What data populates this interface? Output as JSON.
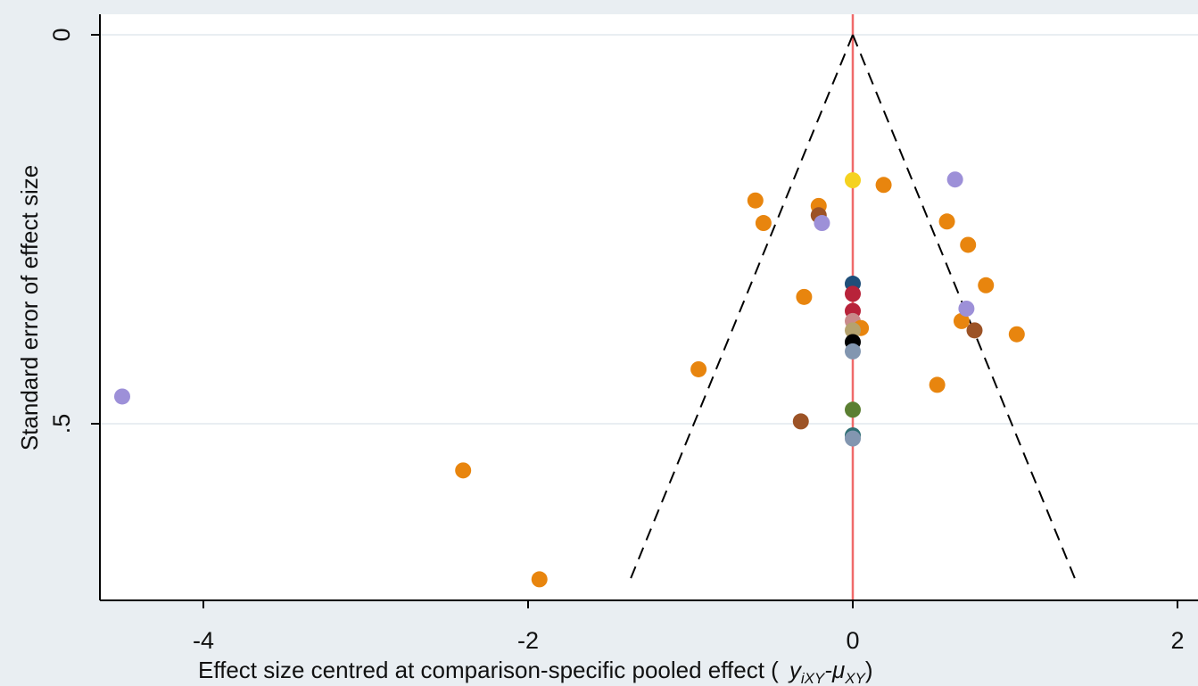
{
  "chart_data": {
    "type": "scatter",
    "title": "",
    "xlabel": "Effect size centred at comparison-specific pooled effect (",
    "xlabel_math": "y",
    "xlabel_math_sub1": "iXY",
    "xlabel_math_mu": "-μ",
    "xlabel_math_sub2": "XY",
    "xlabel_close": ")",
    "ylabel": "Standard error of effect size",
    "xlim": [
      -4.6,
      2.05
    ],
    "ylim": [
      0,
      0.725
    ],
    "y_reversed": true,
    "x_ticks": [
      {
        "value": -4,
        "label": "-4"
      },
      {
        "value": -2,
        "label": "-2"
      },
      {
        "value": 0,
        "label": "0"
      },
      {
        "value": 2,
        "label": "2"
      }
    ],
    "y_ticks": [
      {
        "value": 0,
        "label": "0"
      },
      {
        "value": 0.5,
        "label": ".5"
      }
    ],
    "grid": "horizontal",
    "reference_line": {
      "x": 0,
      "color": "#f06a6a"
    },
    "funnel": {
      "apex": [
        0,
        0
      ],
      "left_end": [
        -1.37,
        0.7
      ],
      "right_end": [
        1.37,
        0.7
      ]
    },
    "colors": {
      "orange": "#e8850e",
      "lavender": "#9d90d8",
      "brown": "#9c5326",
      "navy": "#1f4e79",
      "crimson": "#b8233a",
      "rose": "#c98a8a",
      "tan": "#b5a26e",
      "black": "#000000",
      "steel": "#8296b0",
      "olive": "#5b7f32",
      "teal": "#2f6f74",
      "yellow": "#f5d21f",
      "grid": "#ffffff",
      "background": "#e9eef2"
    },
    "points": [
      {
        "x": -4.5,
        "y": 0.465,
        "color": "lavender"
      },
      {
        "x": -2.4,
        "y": 0.56,
        "color": "orange"
      },
      {
        "x": -1.93,
        "y": 0.7,
        "color": "orange"
      },
      {
        "x": -0.95,
        "y": 0.43,
        "color": "orange"
      },
      {
        "x": -0.6,
        "y": 0.213,
        "color": "orange"
      },
      {
        "x": -0.55,
        "y": 0.242,
        "color": "orange"
      },
      {
        "x": -0.3,
        "y": 0.337,
        "color": "orange"
      },
      {
        "x": -0.32,
        "y": 0.497,
        "color": "brown"
      },
      {
        "x": -0.21,
        "y": 0.22,
        "color": "orange"
      },
      {
        "x": -0.21,
        "y": 0.232,
        "color": "brown"
      },
      {
        "x": -0.19,
        "y": 0.242,
        "color": "lavender"
      },
      {
        "x": 0.0,
        "y": 0.32,
        "color": "navy"
      },
      {
        "x": 0.0,
        "y": 0.333,
        "color": "crimson"
      },
      {
        "x": 0.0,
        "y": 0.355,
        "color": "crimson"
      },
      {
        "x": 0.0,
        "y": 0.368,
        "color": "rose"
      },
      {
        "x": 0.05,
        "y": 0.377,
        "color": "orange"
      },
      {
        "x": 0.0,
        "y": 0.38,
        "color": "tan"
      },
      {
        "x": 0.0,
        "y": 0.395,
        "color": "black"
      },
      {
        "x": 0.0,
        "y": 0.407,
        "color": "steel"
      },
      {
        "x": 0.0,
        "y": 0.482,
        "color": "olive"
      },
      {
        "x": 0.0,
        "y": 0.515,
        "color": "teal"
      },
      {
        "x": 0.0,
        "y": 0.519,
        "color": "steel"
      },
      {
        "x": 0.0,
        "y": 0.187,
        "color": "yellow"
      },
      {
        "x": 0.19,
        "y": 0.193,
        "color": "orange"
      },
      {
        "x": 0.52,
        "y": 0.45,
        "color": "orange"
      },
      {
        "x": 0.58,
        "y": 0.24,
        "color": "orange"
      },
      {
        "x": 0.63,
        "y": 0.186,
        "color": "lavender"
      },
      {
        "x": 0.67,
        "y": 0.368,
        "color": "orange"
      },
      {
        "x": 0.7,
        "y": 0.352,
        "color": "lavender"
      },
      {
        "x": 0.71,
        "y": 0.27,
        "color": "orange"
      },
      {
        "x": 0.75,
        "y": 0.38,
        "color": "brown"
      },
      {
        "x": 0.82,
        "y": 0.322,
        "color": "orange"
      },
      {
        "x": 1.01,
        "y": 0.385,
        "color": "orange"
      }
    ]
  }
}
